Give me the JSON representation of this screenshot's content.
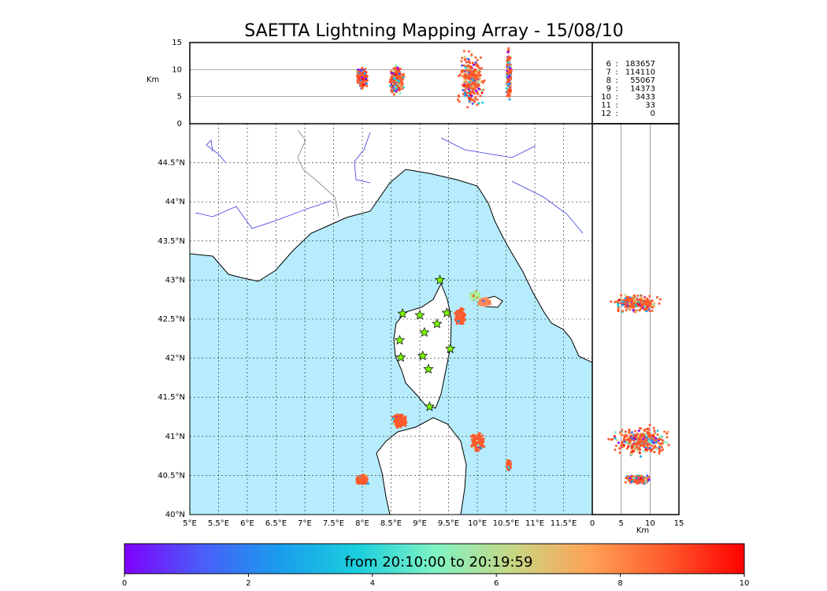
{
  "title": "SAETTA Lightning Mapping Array - 15/08/10",
  "colorbar": {
    "label": "from 20:10:00 to 20:19:59",
    "ticks": [
      "0",
      "2",
      "4",
      "6",
      "8",
      "10"
    ],
    "range": [
      0,
      10
    ],
    "colormap": [
      "#7f00ff",
      "#4a5df9",
      "#1a9ded",
      "#19cfdd",
      "#7ff3c4",
      "#c6d784",
      "#ffa256",
      "#ff5a2c",
      "#ff0000"
    ]
  },
  "colors": {
    "sea": "#b6ecfb",
    "land": "#ffffff",
    "coast": "#000000",
    "rivers": "#3a3ae0",
    "borders": "#555555",
    "station": "#7cfc00",
    "dominant_source": "#ff5a2c"
  },
  "chart_data": {
    "type": "scatter",
    "map": {
      "x_ticks": [
        "5°E",
        "5.5°E",
        "6°E",
        "6.5°E",
        "7°E",
        "7.5°E",
        "8°E",
        "8.5°E",
        "9°E",
        "9.5°E",
        "10°E",
        "10.5°E",
        "11°E",
        "11.5°E"
      ],
      "y_ticks": [
        "40°N",
        "40.5°N",
        "41°N",
        "41.5°N",
        "42°N",
        "42.5°N",
        "43°N",
        "43.5°N",
        "44°N",
        "44.5°N"
      ],
      "xlim": [
        5.0,
        12.0
      ],
      "ylim": [
        40.0,
        45.0
      ],
      "grid": true,
      "stations": [
        {
          "lon": 9.35,
          "lat": 43.0
        },
        {
          "lon": 8.7,
          "lat": 42.57
        },
        {
          "lon": 9.0,
          "lat": 42.55
        },
        {
          "lon": 9.47,
          "lat": 42.58
        },
        {
          "lon": 9.3,
          "lat": 42.44
        },
        {
          "lon": 9.08,
          "lat": 42.33
        },
        {
          "lon": 8.65,
          "lat": 42.23
        },
        {
          "lon": 9.53,
          "lat": 42.12
        },
        {
          "lon": 8.67,
          "lat": 42.01
        },
        {
          "lon": 9.05,
          "lat": 42.03
        },
        {
          "lon": 9.15,
          "lat": 41.86
        },
        {
          "lon": 9.17,
          "lat": 41.38
        }
      ],
      "clusters": [
        {
          "lon": 9.95,
          "lat": 42.8,
          "spread_lon": 0.1,
          "spread_lat": 0.06,
          "color": "#a6f59a"
        },
        {
          "lon": 10.12,
          "lat": 42.72,
          "spread_lon": 0.12,
          "spread_lat": 0.06,
          "color": "#ff8c5a"
        },
        {
          "lon": 9.7,
          "lat": 42.53,
          "spread_lon": 0.1,
          "spread_lat": 0.12,
          "color": "#ff5a2c"
        },
        {
          "lon": 8.65,
          "lat": 41.2,
          "spread_lon": 0.16,
          "spread_lat": 0.1,
          "color": "#ff5a2c"
        },
        {
          "lon": 10.0,
          "lat": 40.93,
          "spread_lon": 0.15,
          "spread_lat": 0.14,
          "color": "#ff5a2c"
        },
        {
          "lon": 10.55,
          "lat": 40.63,
          "spread_lon": 0.04,
          "spread_lat": 0.07,
          "color": "#ff5a2c"
        },
        {
          "lon": 8.0,
          "lat": 40.45,
          "spread_lon": 0.12,
          "spread_lat": 0.07,
          "color": "#ff5a2c"
        }
      ]
    },
    "top_panel": {
      "ylabel": "Km",
      "y_ticks": [
        "0",
        "5",
        "10",
        "15"
      ],
      "ylim": [
        0,
        15
      ],
      "columns": [
        {
          "lon": 8.0,
          "alt": 8.5,
          "spread_lon": 0.12,
          "spread_alt": 2.2
        },
        {
          "lon": 8.6,
          "alt": 8.0,
          "spread_lon": 0.16,
          "spread_alt": 3.0
        },
        {
          "lon": 9.9,
          "alt": 8.0,
          "spread_lon": 0.28,
          "spread_alt": 6.0
        },
        {
          "lon": 10.55,
          "alt": 9.0,
          "spread_lon": 0.05,
          "spread_alt": 5.5
        }
      ]
    },
    "side_panel": {
      "xlabel": "Km",
      "x_ticks": [
        "0",
        "5",
        "10",
        "15"
      ],
      "xlim": [
        0,
        15
      ],
      "columns": [
        {
          "lat": 42.7,
          "alt": 7.5,
          "spread_alt": 5.0,
          "spread_lat": 0.13
        },
        {
          "lat": 40.95,
          "alt": 8.5,
          "spread_alt": 6.0,
          "spread_lat": 0.22
        },
        {
          "lat": 40.45,
          "alt": 8.0,
          "spread_alt": 2.5,
          "spread_lat": 0.06
        }
      ]
    },
    "legend": {
      "rows": [
        {
          "label": "6",
          "value": "183657",
          "color": "#000000"
        },
        {
          "label": "7",
          "value": "114110",
          "color": "#ff0000"
        },
        {
          "label": "8",
          "value": "55067",
          "color": "#000000"
        },
        {
          "label": "9",
          "value": "14373",
          "color": "#000000"
        },
        {
          "label": "10",
          "value": "3433",
          "color": "#000000"
        },
        {
          "label": "11",
          "value": "33",
          "color": "#000000"
        },
        {
          "label": "12",
          "value": "0",
          "color": "#000000"
        }
      ]
    }
  }
}
